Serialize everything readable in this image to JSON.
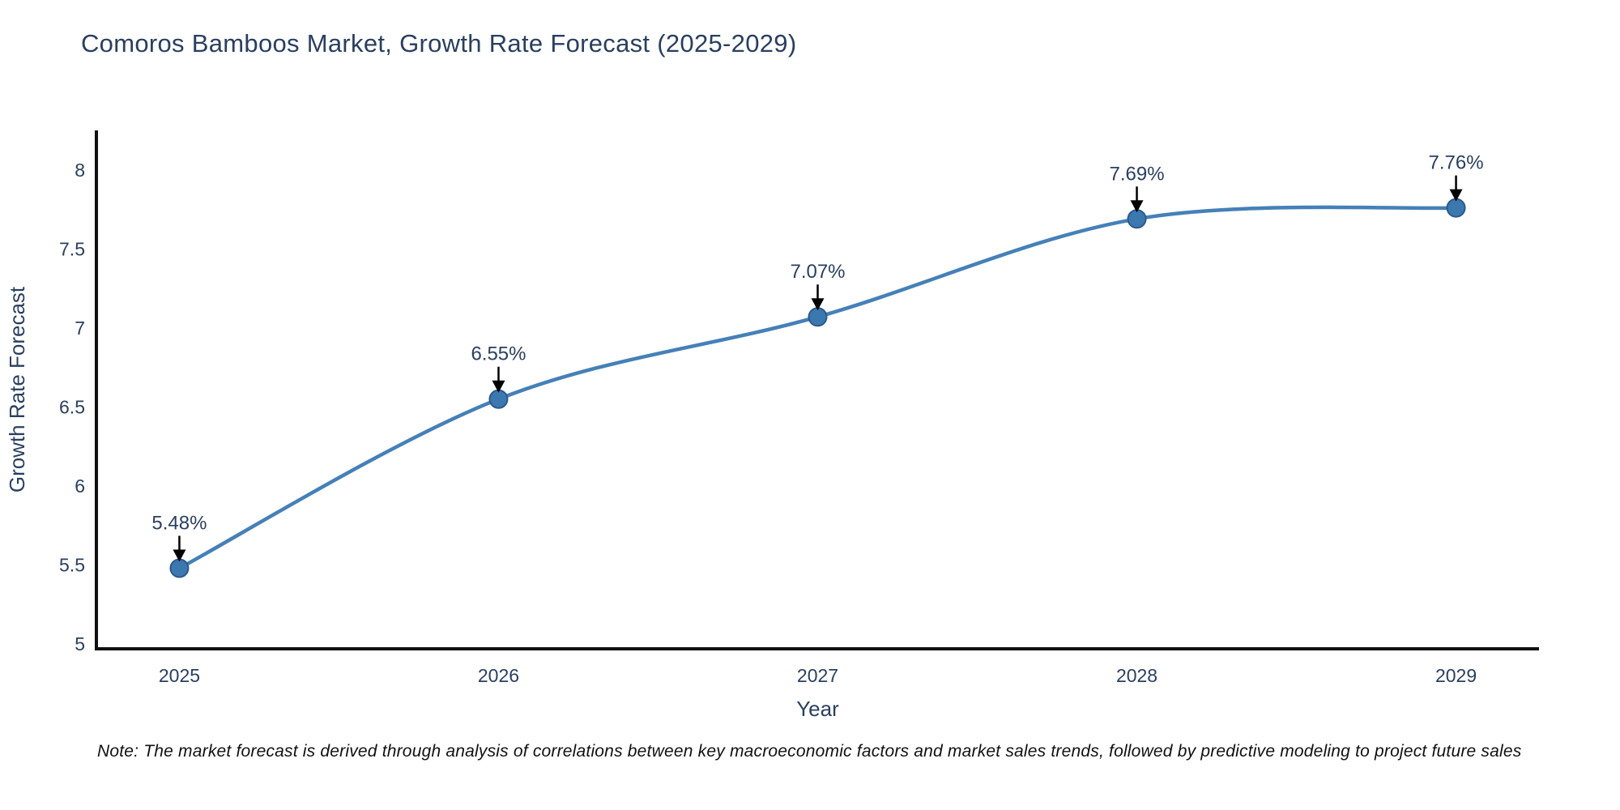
{
  "title": "Comoros Bamboos Market, Growth Rate Forecast (2025-2029)",
  "note": "Note: The market forecast is derived through analysis of correlations between key macroeconomic factors and market sales trends, followed by predictive modeling to project future sales",
  "chart_data": {
    "type": "line",
    "title": "Comoros Bamboos Market, Growth Rate Forecast (2025-2029)",
    "xlabel": "Year",
    "ylabel": "Growth Rate Forecast",
    "x": [
      2025,
      2026,
      2027,
      2028,
      2029
    ],
    "series": [
      {
        "name": "Growth Rate Forecast",
        "values": [
          5.48,
          6.55,
          7.07,
          7.69,
          7.76
        ]
      }
    ],
    "point_labels": [
      "5.48%",
      "6.55%",
      "7.07%",
      "7.69%",
      "7.76%"
    ],
    "yticks": [
      5,
      5.5,
      6,
      6.5,
      7,
      7.5,
      8
    ],
    "ytick_labels": [
      "5",
      "5.5",
      "6",
      "6.5",
      "7",
      "7.5",
      "8"
    ],
    "xtick_labels": [
      "2025",
      "2026",
      "2027",
      "2028",
      "2029"
    ],
    "xlim": [
      2024.74,
      2029.26
    ],
    "ylim": [
      4.97,
      8.25
    ],
    "grid": false,
    "legend_position": "none",
    "line_shape": "spline",
    "annotations_arrow": "down",
    "colors": {
      "line": "#4580b8",
      "marker_fill": "#3c78b0",
      "marker_edge": "#2a5a89",
      "axis_line": "#111111",
      "tick_text": "#2a3f5f",
      "title_text": "#2a3f5f",
      "annotation_text": "#2a3f5f",
      "arrow": "#000000",
      "note_text": "#111111",
      "background": "#ffffff"
    }
  }
}
